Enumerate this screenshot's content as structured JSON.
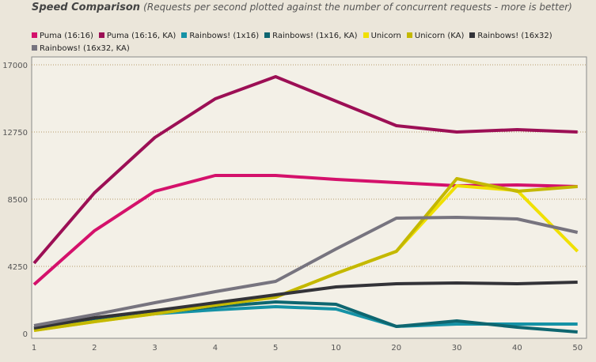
{
  "chart_data": {
    "type": "line",
    "title": "Speed Comparison",
    "subtitle": "(Requests per second plotted against the number of concurrent requests - more is better)",
    "xlabel": "",
    "ylabel": "",
    "categories": [
      "1",
      "2",
      "3",
      "4",
      "5",
      "10",
      "20",
      "30",
      "40",
      "50"
    ],
    "yticks": [
      "0",
      "4250",
      "8500",
      "12750",
      "17000"
    ],
    "ylim": [
      0,
      17000
    ],
    "grid": true,
    "legend": "top",
    "series": [
      {
        "name": "Puma (16:16)",
        "color": "#d4116b",
        "values": [
          3100,
          6500,
          9000,
          10000,
          10000,
          9750,
          9550,
          9350,
          9400,
          9300
        ]
      },
      {
        "name": "Puma (16:16, KA)",
        "color": "#9c0f55",
        "values": [
          4450,
          8900,
          12400,
          14850,
          16250,
          14700,
          13150,
          12750,
          12900,
          12750
        ]
      },
      {
        "name": "Rainbows! (1x16)",
        "color": "#1592a6",
        "values": [
          250,
          900,
          1250,
          1500,
          1700,
          1550,
          450,
          600,
          600,
          600
        ]
      },
      {
        "name": "Rainbows! (1x16, KA)",
        "color": "#0e6670",
        "values": [
          350,
          950,
          1300,
          1700,
          2000,
          1850,
          450,
          800,
          400,
          100
        ]
      },
      {
        "name": "Unicorn",
        "color": "#f0e000",
        "values": [
          200,
          750,
          1250,
          1800,
          2300,
          3800,
          5200,
          9350,
          9050,
          5200
        ]
      },
      {
        "name": "Unicorn (KA)",
        "color": "#c4b800",
        "values": [
          200,
          750,
          1250,
          1800,
          2300,
          3800,
          5200,
          9800,
          9000,
          9300
        ]
      },
      {
        "name": "Rainbows! (16x32)",
        "color": "#333338",
        "values": [
          350,
          1000,
          1450,
          1950,
          2450,
          2950,
          3150,
          3200,
          3150,
          3250
        ]
      },
      {
        "name": "Rainbows! (16x32, KA)",
        "color": "#77747f",
        "values": [
          500,
          1200,
          1950,
          2650,
          3300,
          5350,
          7300,
          7350,
          7250,
          6400
        ]
      }
    ]
  }
}
